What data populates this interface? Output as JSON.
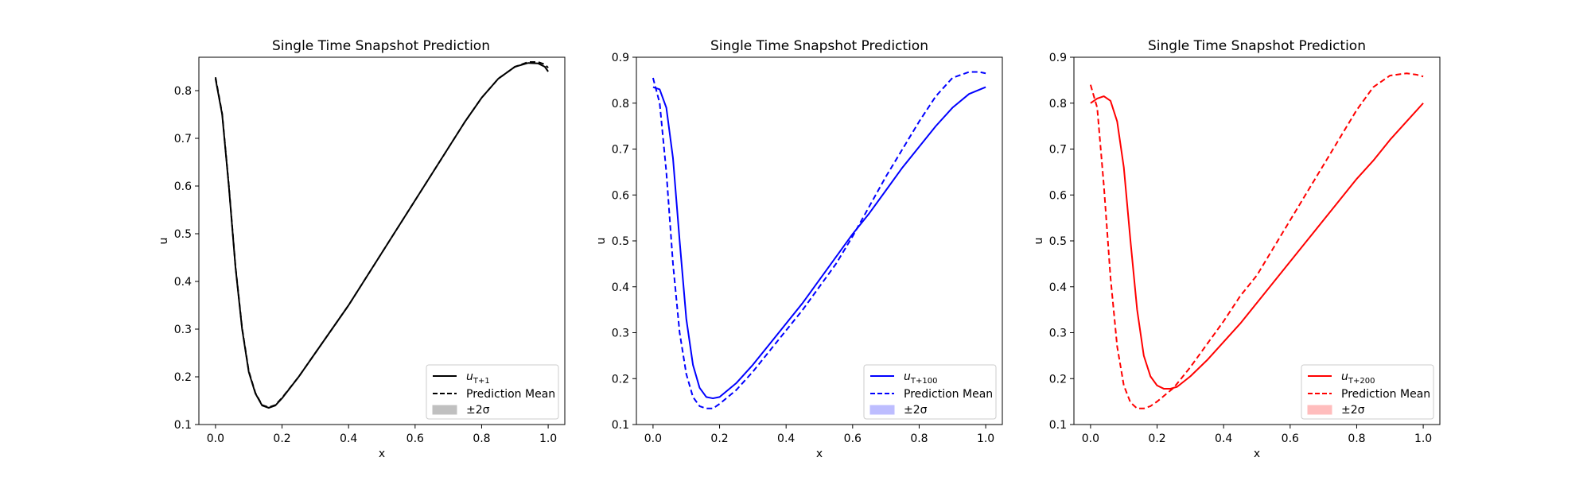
{
  "chart_data": [
    {
      "type": "line",
      "title": "Single Time Snapshot Prediction",
      "xlabel": "x",
      "ylabel": "u",
      "xlim": [
        -0.05,
        1.05
      ],
      "ylim": [
        0.1,
        0.87
      ],
      "xticks": [
        "0.0",
        "0.2",
        "0.4",
        "0.6",
        "0.8",
        "1.0"
      ],
      "yticks": [
        "0.1",
        "0.2",
        "0.3",
        "0.4",
        "0.5",
        "0.6",
        "0.7",
        "0.8"
      ],
      "legend_position": "lower-right",
      "color": "#000000",
      "band_color": "#c0c0c0",
      "legend": {
        "truth": "u_{T+1}",
        "mean": "Prediction Mean",
        "band": "±2σ"
      },
      "series": [
        {
          "name": "u_{T+1}",
          "style": "solid",
          "x": [
            0.0,
            0.02,
            0.04,
            0.06,
            0.08,
            0.1,
            0.12,
            0.14,
            0.16,
            0.18,
            0.2,
            0.25,
            0.3,
            0.35,
            0.4,
            0.45,
            0.5,
            0.55,
            0.6,
            0.65,
            0.7,
            0.75,
            0.8,
            0.85,
            0.9,
            0.94,
            0.97,
            0.99,
            1.0
          ],
          "y": [
            0.825,
            0.75,
            0.6,
            0.43,
            0.3,
            0.21,
            0.165,
            0.14,
            0.135,
            0.14,
            0.155,
            0.2,
            0.25,
            0.3,
            0.35,
            0.405,
            0.46,
            0.515,
            0.57,
            0.625,
            0.68,
            0.735,
            0.785,
            0.825,
            0.85,
            0.858,
            0.857,
            0.85,
            0.84
          ]
        },
        {
          "name": "Prediction Mean",
          "style": "dashed",
          "x": [
            0.0,
            0.02,
            0.04,
            0.06,
            0.08,
            0.1,
            0.12,
            0.14,
            0.16,
            0.18,
            0.2,
            0.25,
            0.3,
            0.35,
            0.4,
            0.45,
            0.5,
            0.55,
            0.6,
            0.65,
            0.7,
            0.75,
            0.8,
            0.85,
            0.9,
            0.94,
            0.97,
            0.99,
            1.0
          ],
          "y": [
            0.828,
            0.752,
            0.602,
            0.432,
            0.302,
            0.212,
            0.166,
            0.141,
            0.136,
            0.141,
            0.156,
            0.2,
            0.25,
            0.3,
            0.35,
            0.405,
            0.46,
            0.515,
            0.57,
            0.625,
            0.68,
            0.735,
            0.785,
            0.825,
            0.85,
            0.86,
            0.86,
            0.855,
            0.848
          ]
        }
      ]
    },
    {
      "type": "line",
      "title": "Single Time Snapshot Prediction",
      "xlabel": "x",
      "ylabel": "u",
      "xlim": [
        -0.05,
        1.05
      ],
      "ylim": [
        0.1,
        0.9
      ],
      "xticks": [
        "0.0",
        "0.2",
        "0.4",
        "0.6",
        "0.8",
        "1.0"
      ],
      "yticks": [
        "0.1",
        "0.2",
        "0.3",
        "0.4",
        "0.5",
        "0.6",
        "0.7",
        "0.8",
        "0.9"
      ],
      "legend_position": "lower-right",
      "color": "#0000ff",
      "band_color": "#bdbdff",
      "legend": {
        "truth": "u_{T+100}",
        "mean": "Prediction Mean",
        "band": "±2σ"
      },
      "series": [
        {
          "name": "u_{T+100}",
          "style": "solid",
          "x": [
            0.0,
            0.02,
            0.04,
            0.06,
            0.08,
            0.1,
            0.12,
            0.14,
            0.16,
            0.18,
            0.2,
            0.25,
            0.3,
            0.35,
            0.4,
            0.45,
            0.5,
            0.55,
            0.6,
            0.65,
            0.7,
            0.75,
            0.8,
            0.85,
            0.9,
            0.95,
            1.0
          ],
          "y": [
            0.835,
            0.83,
            0.79,
            0.68,
            0.5,
            0.33,
            0.23,
            0.18,
            0.16,
            0.157,
            0.16,
            0.19,
            0.23,
            0.275,
            0.32,
            0.365,
            0.415,
            0.465,
            0.515,
            0.56,
            0.61,
            0.66,
            0.705,
            0.75,
            0.79,
            0.82,
            0.835
          ]
        },
        {
          "name": "Prediction Mean",
          "style": "dashed",
          "x": [
            0.0,
            0.02,
            0.04,
            0.06,
            0.08,
            0.1,
            0.12,
            0.14,
            0.16,
            0.18,
            0.2,
            0.25,
            0.3,
            0.35,
            0.4,
            0.45,
            0.5,
            0.55,
            0.6,
            0.65,
            0.7,
            0.75,
            0.8,
            0.85,
            0.9,
            0.95,
            0.98,
            1.0
          ],
          "y": [
            0.855,
            0.8,
            0.65,
            0.45,
            0.3,
            0.21,
            0.16,
            0.14,
            0.135,
            0.135,
            0.145,
            0.175,
            0.215,
            0.26,
            0.305,
            0.35,
            0.4,
            0.45,
            0.51,
            0.575,
            0.64,
            0.7,
            0.76,
            0.815,
            0.855,
            0.868,
            0.868,
            0.865
          ]
        }
      ]
    },
    {
      "type": "line",
      "title": "Single Time Snapshot Prediction",
      "xlabel": "x",
      "ylabel": "u",
      "xlim": [
        -0.05,
        1.05
      ],
      "ylim": [
        0.1,
        0.9
      ],
      "xticks": [
        "0.0",
        "0.2",
        "0.4",
        "0.6",
        "0.8",
        "1.0"
      ],
      "yticks": [
        "0.1",
        "0.2",
        "0.3",
        "0.4",
        "0.5",
        "0.6",
        "0.7",
        "0.8",
        "0.9"
      ],
      "legend_position": "lower-right",
      "color": "#ff0000",
      "band_color": "#ffbdbd",
      "legend": {
        "truth": "u_{T+200}",
        "mean": "Prediction Mean",
        "band": "±2σ"
      },
      "series": [
        {
          "name": "u_{T+200}",
          "style": "solid",
          "x": [
            0.0,
            0.02,
            0.04,
            0.06,
            0.08,
            0.1,
            0.12,
            0.14,
            0.16,
            0.18,
            0.2,
            0.22,
            0.24,
            0.26,
            0.3,
            0.35,
            0.4,
            0.45,
            0.5,
            0.55,
            0.6,
            0.65,
            0.7,
            0.75,
            0.8,
            0.85,
            0.9,
            0.95,
            1.0
          ],
          "y": [
            0.8,
            0.81,
            0.815,
            0.805,
            0.76,
            0.66,
            0.5,
            0.35,
            0.25,
            0.205,
            0.185,
            0.178,
            0.178,
            0.182,
            0.205,
            0.24,
            0.28,
            0.32,
            0.365,
            0.41,
            0.455,
            0.5,
            0.545,
            0.59,
            0.635,
            0.675,
            0.72,
            0.76,
            0.8
          ]
        },
        {
          "name": "Prediction Mean",
          "style": "dashed",
          "x": [
            0.0,
            0.02,
            0.04,
            0.06,
            0.08,
            0.1,
            0.12,
            0.14,
            0.16,
            0.18,
            0.2,
            0.25,
            0.3,
            0.35,
            0.4,
            0.45,
            0.5,
            0.55,
            0.6,
            0.65,
            0.7,
            0.75,
            0.8,
            0.85,
            0.9,
            0.95,
            0.98,
            1.0
          ],
          "y": [
            0.84,
            0.79,
            0.62,
            0.42,
            0.27,
            0.185,
            0.148,
            0.135,
            0.135,
            0.14,
            0.15,
            0.18,
            0.225,
            0.275,
            0.325,
            0.38,
            0.425,
            0.485,
            0.545,
            0.605,
            0.665,
            0.725,
            0.785,
            0.835,
            0.86,
            0.865,
            0.862,
            0.858
          ]
        }
      ]
    }
  ]
}
